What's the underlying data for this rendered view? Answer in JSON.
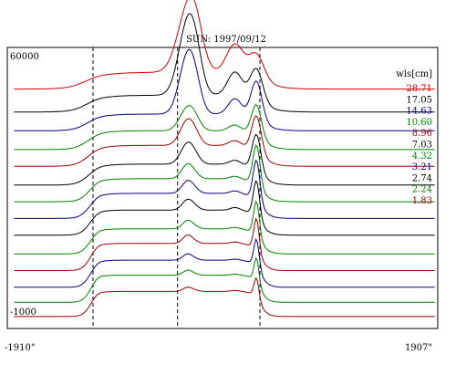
{
  "chart_data": {
    "type": "line",
    "title": "SUN: 1997/09/12",
    "y_top_label": "60000",
    "y_bottom_label": "-1000",
    "x_left_label": "-1910\"",
    "x_right_label": "1907\"",
    "legend_header": "wls[cm]",
    "x_range": [
      -1910,
      1907
    ],
    "y_range": [
      -1000,
      60000
    ],
    "grid": false,
    "legend_placement": "right",
    "dashed_vertical_lines_x": [
      -1150,
      -400,
      330
    ],
    "series": [
      {
        "name": "28.71",
        "color": "#cc0000",
        "limb_edge": 0.4,
        "feature_a": 1.45,
        "feature_b": 0.55,
        "feature_c": 0.6,
        "width_scale": 1.3,
        "offset": 52000
      },
      {
        "name": "17.05",
        "color": "#000000",
        "limb_edge": 0.4,
        "feature_a": 1.7,
        "feature_b": 0.45,
        "feature_c": 0.8,
        "width_scale": 1.05,
        "offset": 46500
      },
      {
        "name": "14.63",
        "color": "#000080",
        "limb_edge": 0.4,
        "feature_a": 1.4,
        "feature_b": 0.3,
        "feature_c": 0.95,
        "width_scale": 0.9,
        "offset": 42000
      },
      {
        "name": "10.60",
        "color": "#008000",
        "limb_edge": 0.45,
        "feature_a": 0.55,
        "feature_b": 0.12,
        "feature_c": 0.8,
        "width_scale": 0.8,
        "offset": 37500
      },
      {
        "name": "8.96",
        "color": "#990000",
        "limb_edge": 0.5,
        "feature_a": 0.6,
        "feature_b": 0.1,
        "feature_c": 0.9,
        "width_scale": 0.75,
        "offset": 33500
      },
      {
        "name": "7.03",
        "color": "#000000",
        "limb_edge": 0.5,
        "feature_a": 0.5,
        "feature_b": 0.08,
        "feature_c": 0.9,
        "width_scale": 0.65,
        "offset": 29000
      },
      {
        "name": "4.32",
        "color": "#008000",
        "limb_edge": 0.55,
        "feature_a": 0.35,
        "feature_b": 0.05,
        "feature_c": 1.0,
        "width_scale": 0.5,
        "offset": 25000
      },
      {
        "name": "3.21",
        "color": "#000080",
        "limb_edge": 0.6,
        "feature_a": 0.3,
        "feature_b": 0.05,
        "feature_c": 1.0,
        "width_scale": 0.45,
        "offset": 21000
      },
      {
        "name": "2.74",
        "color": "#000000",
        "limb_edge": 0.6,
        "feature_a": 0.25,
        "feature_b": 0.05,
        "feature_c": 0.9,
        "width_scale": 0.4,
        "offset": 17000
      },
      {
        "name": "2.24",
        "color": "#008000",
        "limb_edge": 0.6,
        "feature_a": 0.2,
        "feature_b": 0.03,
        "feature_c": 0.85,
        "width_scale": 0.35,
        "offset": 12500
      },
      {
        "name": "1.83",
        "color": "#990000",
        "limb_edge": 0.65,
        "feature_a": 0.2,
        "feature_b": 0.03,
        "feature_c": 0.8,
        "width_scale": 0.3,
        "offset": 8500
      },
      {
        "name": "",
        "color": "#000080",
        "limb_edge": 0.65,
        "feature_a": 0.15,
        "feature_b": 0.02,
        "feature_c": 0.7,
        "width_scale": 0.3,
        "offset": 4500
      },
      {
        "name": "",
        "color": "#008000",
        "limb_edge": 0.65,
        "feature_a": 0.12,
        "feature_b": 0.02,
        "feature_c": 0.6,
        "width_scale": 0.25,
        "offset": 900
      },
      {
        "name": "",
        "color": "#990000",
        "limb_edge": 0.6,
        "feature_a": 0.1,
        "feature_b": 0.02,
        "feature_c": 0.5,
        "width_scale": 0.25,
        "offset": -2500
      }
    ]
  }
}
